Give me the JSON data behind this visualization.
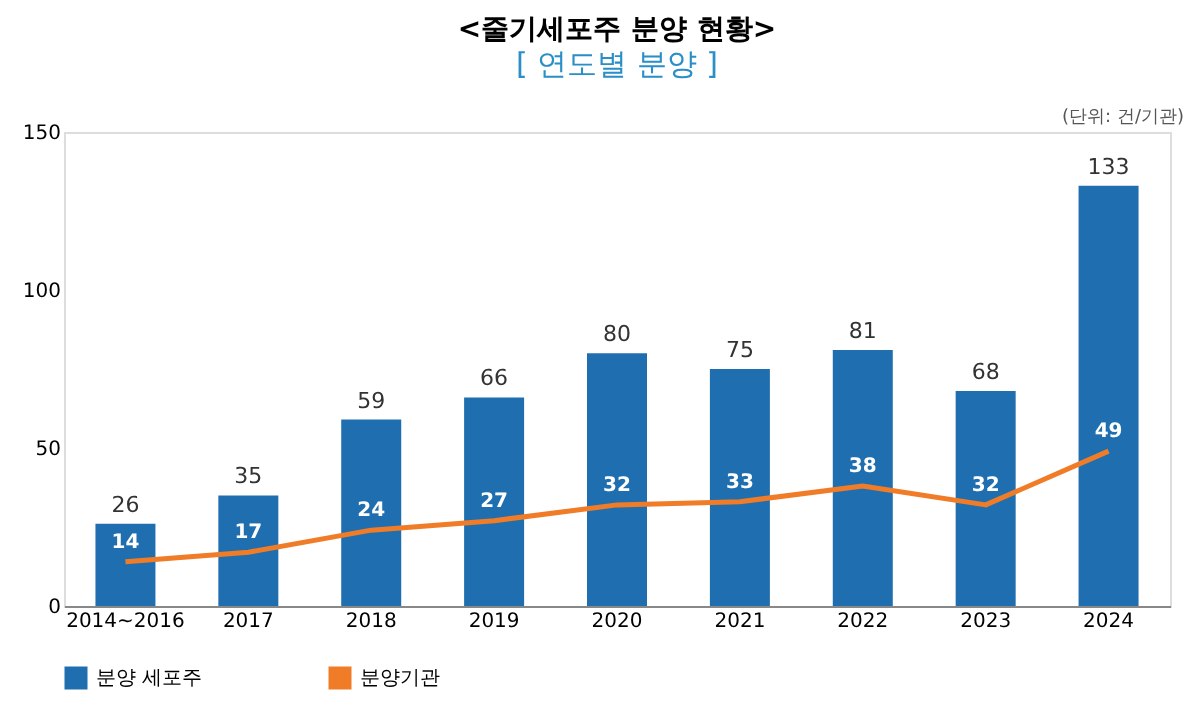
{
  "chart_data": {
    "type": "bar",
    "title": "<줄기세포주 분양 현황>",
    "subtitle": "[ 연도별 분양 ]",
    "categories": [
      "2014~2016",
      "2017",
      "2018",
      "2019",
      "2020",
      "2021",
      "2022",
      "2023",
      "2024"
    ],
    "series": [
      {
        "name": "분양 세포주",
        "color": "#1f6fb0",
        "values": [
          26,
          35,
          59,
          66,
          80,
          75,
          81,
          68,
          133
        ]
      },
      {
        "name": "분양기관",
        "type": "line",
        "color": "#f07c28",
        "values": [
          14,
          17,
          24,
          27,
          32,
          33,
          38,
          32,
          49
        ]
      }
    ],
    "ylim": [
      0,
      150
    ],
    "yticks": [
      0,
      50,
      100,
      150
    ],
    "grid": false,
    "legend": "bottom",
    "data_labels": true,
    "marker": "none",
    "line_style": "solid",
    "annotations": [
      "(단위: 건/기관)"
    ]
  }
}
